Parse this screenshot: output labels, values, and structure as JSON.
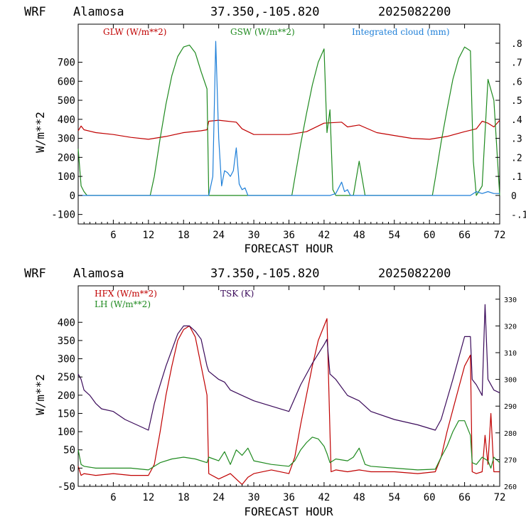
{
  "charts": [
    {
      "title": {
        "model": "WRF",
        "station": "Alamosa",
        "coords": "37.350,-105.820",
        "run": "2025082200"
      },
      "xlabel": "FORECAST HOUR",
      "ylabel": "W/m**2",
      "legend": [
        {
          "label": "GLW (W/m**2)",
          "color": "#c00000"
        },
        {
          "label": "GSW (W/m**2)",
          "color": "#1f8a1f"
        },
        {
          "label": "Integrated cloud (mm)",
          "color": "#1e7fd8"
        }
      ]
    },
    {
      "title": {
        "model": "WRF",
        "station": "Alamosa",
        "coords": "37.350,-105.820",
        "run": "2025082200"
      },
      "xlabel": "FORECAST HOUR",
      "ylabel": "W/m**2",
      "legend": [
        {
          "label": "HFX (W/m**2)",
          "color": "#c00000"
        },
        {
          "label": "LH  (W/m**2)",
          "color": "#1f8a1f"
        },
        {
          "label": "TSK (K)",
          "color": "#3a0a5a"
        }
      ]
    }
  ],
  "chart_data": [
    {
      "type": "line",
      "xlim": [
        0,
        72
      ],
      "x_ticks": [
        6,
        12,
        18,
        24,
        30,
        36,
        42,
        48,
        54,
        60,
        66,
        72
      ],
      "ylim": [
        -150,
        900
      ],
      "y_ticks": [
        -100,
        0,
        100,
        200,
        300,
        400,
        500,
        600,
        700
      ],
      "y2lim": [
        -0.15,
        0.9
      ],
      "y2_tick_labels": [
        "-.1",
        "0",
        ".1",
        ".2",
        ".3",
        ".4",
        ".5",
        ".6",
        ".7",
        ".8"
      ],
      "y2_tick_values": [
        -0.1,
        0,
        0.1,
        0.2,
        0.3,
        0.4,
        0.5,
        0.6,
        0.7,
        0.8
      ],
      "series": [
        {
          "name": "GLW (W/m**2)",
          "axis": "left",
          "color": "#c00000",
          "x": [
            0,
            0.5,
            1,
            3,
            6,
            9,
            12,
            15,
            18,
            21,
            22,
            22.3,
            24,
            27,
            28,
            30,
            33,
            36,
            39,
            42,
            45,
            46,
            48,
            51,
            54,
            57,
            60,
            63,
            66,
            68,
            69,
            70,
            71,
            72
          ],
          "y": [
            340,
            365,
            345,
            330,
            320,
            305,
            295,
            310,
            330,
            340,
            345,
            390,
            395,
            385,
            350,
            320,
            320,
            320,
            335,
            380,
            385,
            360,
            370,
            330,
            315,
            300,
            295,
            310,
            335,
            350,
            390,
            380,
            360,
            395
          ]
        },
        {
          "name": "GSW (W/m**2)",
          "axis": "left",
          "color": "#1f8a1f",
          "x": [
            0,
            0.5,
            1,
            1.5,
            12.3,
            13,
            14,
            15,
            16,
            17,
            18,
            19,
            20,
            21,
            22,
            22.3,
            24,
            36.5,
            37,
            38,
            39,
            40,
            41,
            42,
            42.5,
            43,
            43.5,
            44,
            45,
            46,
            47,
            48,
            49,
            60.5,
            61,
            62,
            63,
            64,
            65,
            66,
            67,
            67.5,
            68,
            69,
            70,
            71,
            72
          ],
          "y": [
            245,
            50,
            20,
            0,
            0,
            100,
            300,
            480,
            630,
            730,
            780,
            790,
            750,
            650,
            560,
            0,
            0,
            0,
            90,
            270,
            430,
            580,
            700,
            770,
            330,
            450,
            30,
            0,
            0,
            0,
            0,
            180,
            0,
            0,
            90,
            280,
            450,
            610,
            720,
            780,
            760,
            180,
            0,
            50,
            610,
            500,
            0
          ]
        },
        {
          "name": "Integrated cloud (mm)",
          "axis": "right",
          "color": "#1e7fd8",
          "x": [
            0,
            22.3,
            23,
            23.5,
            24,
            24.5,
            25,
            25.5,
            26,
            26.5,
            27,
            27.5,
            28,
            28.5,
            29,
            30,
            43,
            44,
            44.5,
            45,
            45.5,
            46,
            46.5,
            47,
            67,
            68,
            69,
            70,
            71,
            72
          ],
          "y": [
            0,
            0,
            0.1,
            0.81,
            0.3,
            0.05,
            0.13,
            0.12,
            0.1,
            0.13,
            0.25,
            0.06,
            0.03,
            0.04,
            0,
            0,
            0,
            0.01,
            0.04,
            0.07,
            0.02,
            0.03,
            0,
            0,
            0,
            0.02,
            0.01,
            0.02,
            0.01,
            0.01
          ]
        }
      ]
    },
    {
      "type": "line",
      "xlim": [
        0,
        72
      ],
      "x_ticks": [
        6,
        12,
        18,
        24,
        30,
        36,
        42,
        48,
        54,
        60,
        66,
        72
      ],
      "ylim": [
        -50,
        500
      ],
      "y_ticks": [
        -50,
        0,
        50,
        100,
        150,
        200,
        250,
        300,
        350,
        400
      ],
      "y2lim": [
        260,
        335
      ],
      "y2_ticks": [
        260,
        270,
        280,
        290,
        300,
        310,
        320,
        330
      ],
      "series": [
        {
          "name": "HFX (W/m**2)",
          "axis": "left",
          "color": "#c00000",
          "x": [
            0,
            0.5,
            1,
            3,
            6,
            9,
            12,
            13,
            14,
            15,
            16,
            17,
            18,
            19,
            20,
            21,
            22,
            22.3,
            24,
            26,
            28,
            29,
            30,
            33,
            36,
            37,
            38,
            39,
            40,
            41,
            42,
            42.5,
            43,
            43.2,
            44,
            46,
            48,
            50,
            54,
            58,
            61,
            62,
            63,
            64,
            65,
            66,
            67,
            67.3,
            68,
            69,
            69.5,
            70,
            70.5,
            71,
            72
          ],
          "y": [
            5,
            -20,
            -15,
            -20,
            -15,
            -20,
            -20,
            10,
            100,
            200,
            280,
            350,
            380,
            390,
            360,
            280,
            200,
            -15,
            -30,
            -15,
            -45,
            -25,
            -15,
            -5,
            -15,
            30,
            120,
            200,
            280,
            350,
            390,
            410,
            100,
            -10,
            -5,
            -10,
            -5,
            -10,
            -10,
            -15,
            -10,
            30,
            100,
            160,
            220,
            280,
            310,
            -10,
            -15,
            -10,
            90,
            10,
            150,
            -10,
            -10
          ]
        },
        {
          "name": "LH  (W/m**2)",
          "axis": "left",
          "color": "#1f8a1f",
          "x": [
            0,
            0.5,
            1,
            3,
            6,
            9,
            12,
            14,
            16,
            18,
            20,
            22,
            22.3,
            24,
            25,
            26,
            27,
            28,
            29,
            30,
            33,
            36,
            37,
            38,
            39,
            40,
            41,
            42,
            42.5,
            43,
            44,
            46,
            47,
            48,
            49,
            50,
            54,
            58,
            61,
            62,
            63,
            64,
            65,
            66,
            67,
            67.3,
            68,
            69,
            70,
            70.5,
            71,
            72
          ],
          "y": [
            50,
            10,
            5,
            0,
            0,
            0,
            -5,
            15,
            25,
            30,
            25,
            15,
            30,
            20,
            45,
            10,
            50,
            35,
            55,
            20,
            10,
            5,
            20,
            50,
            70,
            85,
            80,
            60,
            40,
            15,
            25,
            20,
            30,
            55,
            10,
            5,
            0,
            -5,
            -3,
            30,
            60,
            100,
            130,
            130,
            90,
            15,
            10,
            30,
            20,
            0,
            30,
            15
          ]
        },
        {
          "name": "TSK (K)",
          "axis": "right",
          "color": "#3a0a5a",
          "x": [
            0,
            0.5,
            1,
            2,
            3,
            4,
            6,
            8,
            10,
            12,
            13,
            15,
            17,
            18,
            19,
            20,
            21,
            22,
            22.3,
            24,
            25,
            26,
            28,
            30,
            33,
            36,
            38,
            40,
            42,
            42.5,
            43,
            44,
            46,
            48,
            50,
            54,
            58,
            61,
            62,
            64,
            66,
            67,
            67.3,
            68,
            69,
            69.5,
            70,
            71,
            72
          ],
          "y": [
            302,
            300,
            296,
            294,
            291,
            289,
            288,
            285,
            283,
            281,
            291,
            305,
            317,
            320,
            320,
            318,
            315,
            305,
            303,
            300,
            299,
            296,
            294,
            292,
            290,
            288,
            298,
            306,
            313,
            315,
            302,
            300,
            294,
            292,
            288,
            285,
            283,
            281,
            285,
            300,
            316,
            316,
            300,
            298,
            294,
            328,
            300,
            296,
            295
          ]
        }
      ]
    }
  ]
}
